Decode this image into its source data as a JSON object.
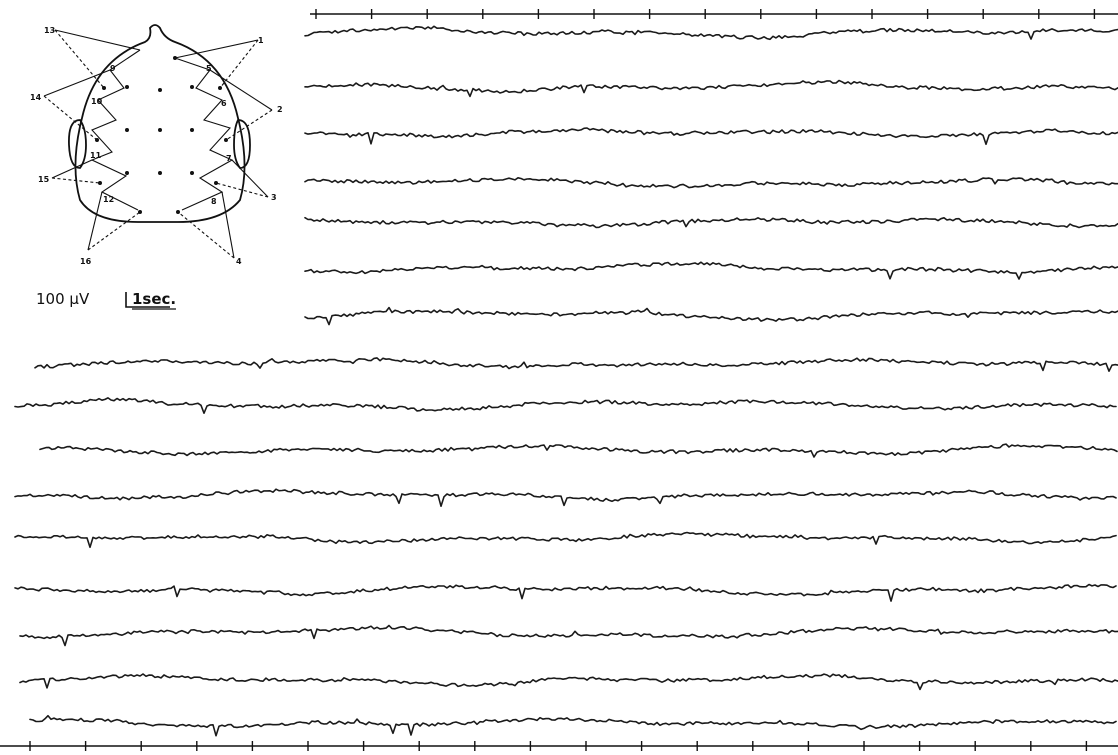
{
  "calibration": {
    "amplitude": "100 μV",
    "time": "1sec."
  },
  "montage": {
    "channel_numbers": [
      "1",
      "2",
      "3",
      "4",
      "5",
      "6",
      "7",
      "8",
      "9",
      "10",
      "11",
      "12",
      "13",
      "14",
      "15",
      "16"
    ]
  },
  "recording": {
    "channel_count": 16,
    "top_section_channels": 7,
    "bottom_section_channels": 9
  },
  "colors": {
    "ink": "#1a1a1a",
    "paper": "#ffffff"
  }
}
